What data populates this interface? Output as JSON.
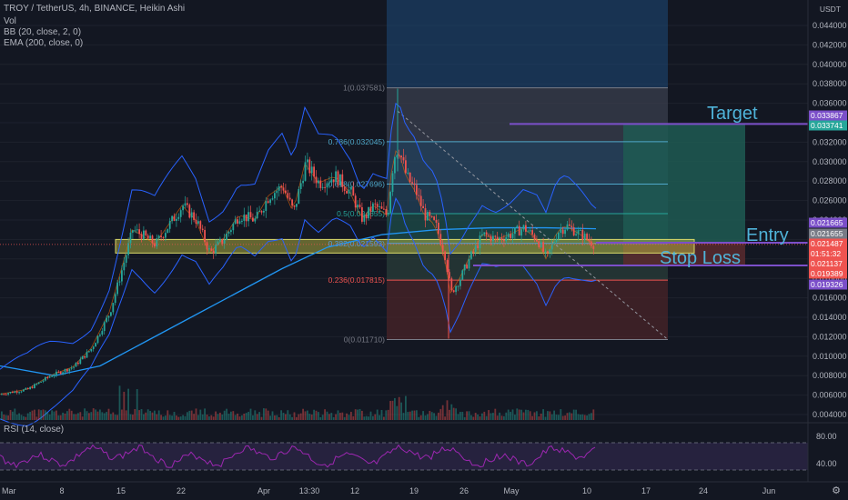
{
  "header": {
    "title": "TROY / TetherUS, 4h, BINANCE, Heikin Ashi",
    "vol": "Vol",
    "bb": "BB (20, close, 2, 0)",
    "ema": "EMA (200, close, 0)",
    "rsi": "RSI (14, close)"
  },
  "axis": {
    "currency": "USDT",
    "price_ticks": [
      "0.044000",
      "0.042000",
      "0.040000",
      "0.038000",
      "0.036000",
      "0.034000",
      "0.032000",
      "0.030000",
      "0.028000",
      "0.026000",
      "0.024000",
      "0.022000",
      "0.020000",
      "0.018000",
      "0.016000",
      "0.014000",
      "0.012000",
      "0.010000",
      "0.008000",
      "0.006000",
      "0.004000"
    ],
    "price_values": [
      0.044,
      0.042,
      0.04,
      0.038,
      0.036,
      0.034,
      0.032,
      0.03,
      0.028,
      0.026,
      0.024,
      0.022,
      0.02,
      0.018,
      0.016,
      0.014,
      0.012,
      0.01,
      0.008,
      0.006,
      0.004
    ],
    "rsi_ticks": [
      "80.00",
      "40.00"
    ],
    "time_labels": [
      "Mar",
      "8",
      "15",
      "22",
      "Apr",
      "13:30",
      "12",
      "19",
      "26",
      "May",
      "10",
      "17",
      "24",
      "Jun"
    ]
  },
  "price_tags": [
    {
      "label": "0.033867",
      "color": "#7b4fc9"
    },
    {
      "label": "0.033741",
      "color": "#26a69a"
    },
    {
      "label": "0.021665",
      "color": "#7b4fc9"
    },
    {
      "label": "0.021655",
      "color": "#787b86"
    },
    {
      "label": "0.021487",
      "color": "#ef5350"
    },
    {
      "label": "01:51:32",
      "color": "#ef5350"
    },
    {
      "label": "0.021137",
      "color": "#ef5350"
    },
    {
      "label": "0.019389",
      "color": "#ef5350"
    },
    {
      "label": "0.019326",
      "color": "#7b4fc9"
    }
  ],
  "fib_levels": [
    {
      "label": "1(0.037581)",
      "price": 0.037581,
      "color": "#787b86"
    },
    {
      "label": "0.786(0.032045)",
      "price": 0.032045,
      "color": "#4fa8c9"
    },
    {
      "label": "0.618(0.027696)",
      "price": 0.027696,
      "color": "#4fa8c9"
    },
    {
      "label": "0.5(0.024655)",
      "price": 0.024655,
      "color": "#26a69a"
    },
    {
      "label": "0.382(0.021593)",
      "price": 0.021593,
      "color": "#5b9bd5"
    },
    {
      "label": "0.236(0.017815)",
      "price": 0.017815,
      "color": "#ef5350"
    },
    {
      "label": "0(0.011710)",
      "price": 0.01171,
      "color": "#787b86"
    }
  ],
  "annotations": {
    "target": "Target",
    "entry": "Entry",
    "stop_loss": "Stop Loss"
  },
  "colors": {
    "bg": "#131722",
    "up": "#26a69a",
    "down": "#ef5350",
    "bb": "#2962ff",
    "ema": "#2196f3",
    "zone": "#c8c845",
    "rsi": "#9c27b0",
    "tp": "#26a69a",
    "sl": "#ef5350"
  },
  "chart_data": {
    "type": "candlestick",
    "title": "TROY / TetherUS, 4h, BINANCE, Heikin Ashi",
    "ylim": [
      0.0035,
      0.0455
    ],
    "indicators": [
      "Vol",
      "BB (20, close, 2, 0)",
      "EMA (200, close, 0)",
      "RSI (14, close)"
    ],
    "trade_setup": {
      "target": 0.033867,
      "entry": 0.021665,
      "stop_loss": 0.019326
    },
    "support_zone": [
      0.0206,
      0.022
    ],
    "price_path": [
      [
        0,
        0.0061
      ],
      [
        30,
        0.0066
      ],
      [
        55,
        0.008
      ],
      [
        80,
        0.0089
      ],
      [
        100,
        0.0108
      ],
      [
        120,
        0.0145
      ],
      [
        135,
        0.0195
      ],
      [
        145,
        0.023
      ],
      [
        155,
        0.0225
      ],
      [
        170,
        0.0215
      ],
      [
        185,
        0.0235
      ],
      [
        200,
        0.0255
      ],
      [
        215,
        0.024
      ],
      [
        230,
        0.0206
      ],
      [
        245,
        0.022
      ],
      [
        262,
        0.0245
      ],
      [
        280,
        0.024
      ],
      [
        295,
        0.0265
      ],
      [
        310,
        0.0275
      ],
      [
        322,
        0.0248
      ],
      [
        335,
        0.0298
      ],
      [
        350,
        0.0278
      ],
      [
        368,
        0.0285
      ],
      [
        385,
        0.0268
      ],
      [
        398,
        0.024
      ],
      [
        410,
        0.0255
      ],
      [
        425,
        0.0245
      ],
      [
        432,
        0.0305
      ],
      [
        437,
        0.0315
      ],
      [
        446,
        0.0285
      ],
      [
        456,
        0.027
      ],
      [
        466,
        0.0245
      ],
      [
        478,
        0.0235
      ],
      [
        488,
        0.0205
      ],
      [
        495,
        0.0165
      ],
      [
        505,
        0.018
      ],
      [
        515,
        0.02
      ],
      [
        530,
        0.0225
      ],
      [
        545,
        0.022
      ],
      [
        560,
        0.0225
      ],
      [
        575,
        0.0232
      ],
      [
        590,
        0.022
      ],
      [
        600,
        0.02
      ],
      [
        612,
        0.0228
      ],
      [
        622,
        0.0234
      ],
      [
        638,
        0.0225
      ],
      [
        652,
        0.0215
      ]
    ]
  }
}
